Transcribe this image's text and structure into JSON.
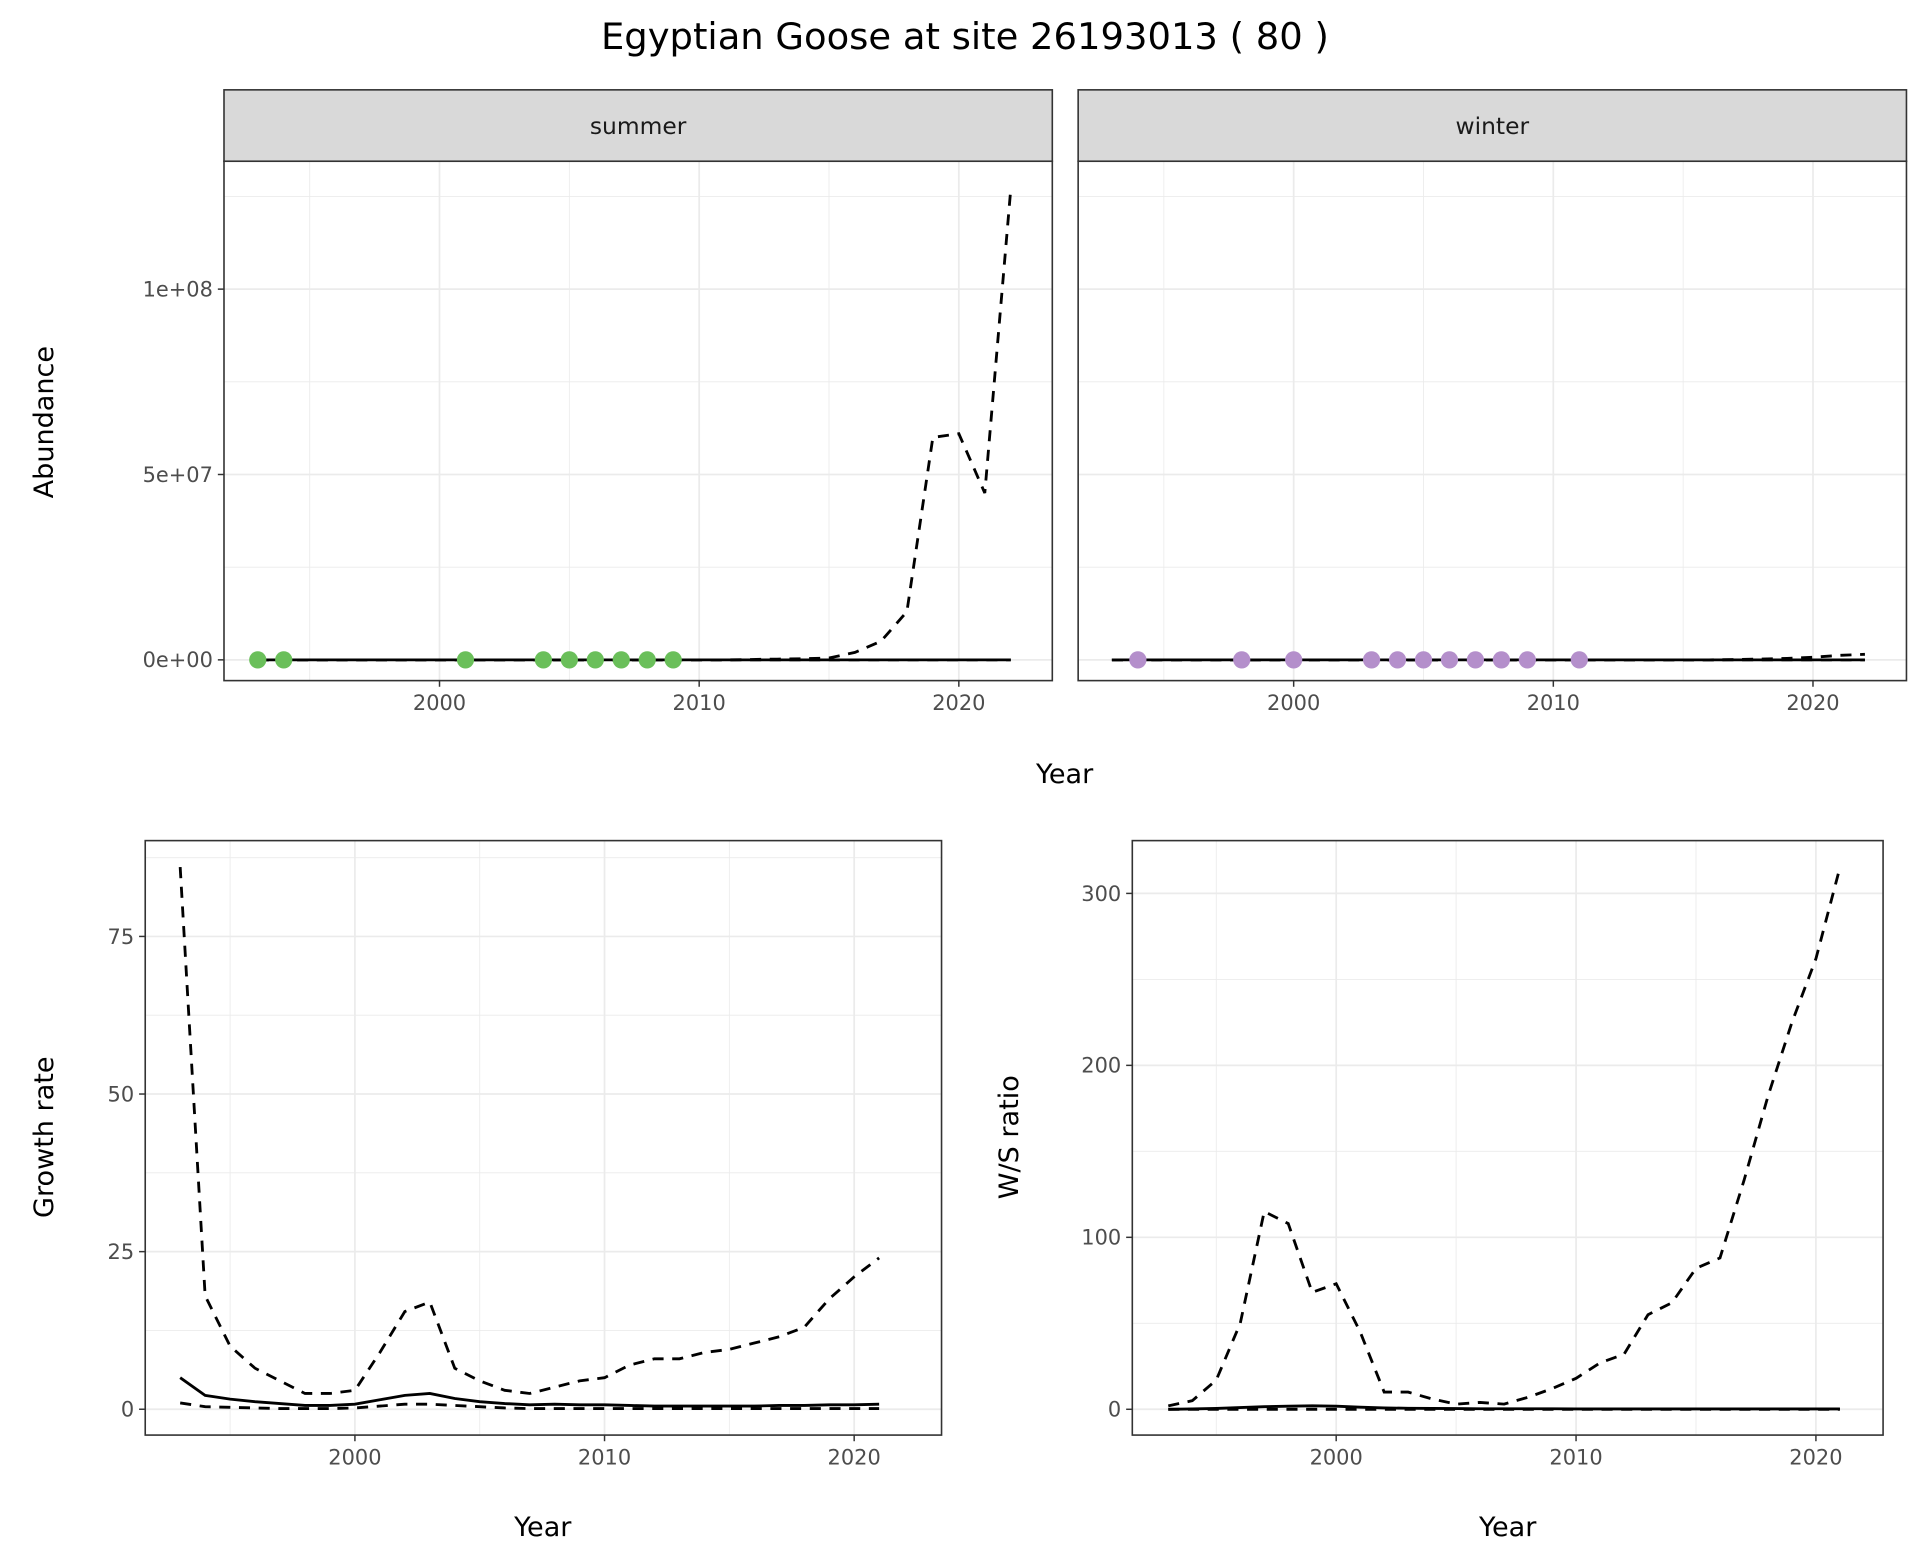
{
  "chart_data": {
    "title": "Egyptian Goose at site 26193013 ( 80 )",
    "colors": {
      "summer_points": "#6abf5a",
      "winter_points": "#b48fcb",
      "line": "#000000",
      "strip": "#d9d9d9",
      "grid": "#ebebeb"
    },
    "abundance": {
      "type": "line",
      "ylabel": "Abundance",
      "xlabel": "Year",
      "xlim": [
        1991.7,
        2023.6
      ],
      "ylim": [
        -5600000,
        134500000
      ],
      "xticks": [
        2000,
        2010,
        2020
      ],
      "xtick_labels": [
        "2000",
        "2010",
        "2020"
      ],
      "yticks": [
        0,
        50000000,
        100000000
      ],
      "ytick_labels": [
        "0e+00",
        "5e+07",
        "1e+08"
      ],
      "panels": [
        {
          "strip": "summer",
          "point_color_key": "summer_points",
          "points": {
            "x": [
              1993,
              1994,
              2001,
              2004,
              2005,
              2006,
              2007,
              2008,
              2009
            ],
            "y": [
              0,
              0,
              0,
              0,
              0,
              0,
              0,
              0,
              0
            ]
          },
          "x": [
            1993,
            1994,
            1995,
            1996,
            1997,
            1998,
            1999,
            2000,
            2001,
            2002,
            2003,
            2004,
            2005,
            2006,
            2007,
            2008,
            2009,
            2010,
            2011,
            2012,
            2013,
            2014,
            2015,
            2016,
            2017,
            2018,
            2019,
            2020,
            2021,
            2022
          ],
          "series": [
            {
              "name": "estimate",
              "style": "solid",
              "values": [
                0,
                0,
                0,
                0,
                0,
                0,
                0,
                0,
                0,
                0,
                0,
                0,
                0,
                0,
                0,
                0,
                0,
                0,
                0,
                0,
                0,
                0,
                0,
                0,
                0,
                0,
                0,
                0,
                0,
                0
              ]
            },
            {
              "name": "upper",
              "style": "dashed",
              "values": [
                0,
                0,
                0,
                0,
                0,
                0,
                0,
                0,
                0,
                0,
                0,
                0,
                0,
                0,
                0,
                0,
                0,
                0,
                0,
                100000,
                200000,
                300000,
                500000,
                2000000,
                5000000,
                13000000,
                60000000,
                61000000,
                45000000,
                127000000
              ]
            },
            {
              "name": "lower",
              "style": "dashed",
              "values": [
                0,
                0,
                0,
                0,
                0,
                0,
                0,
                0,
                0,
                0,
                0,
                0,
                0,
                0,
                0,
                0,
                0,
                0,
                0,
                0,
                0,
                0,
                0,
                0,
                0,
                0,
                0,
                0,
                0,
                0
              ]
            }
          ]
        },
        {
          "strip": "winter",
          "point_color_key": "winter_points",
          "points": {
            "x": [
              1994,
              1998,
              2000,
              2003,
              2004,
              2005,
              2006,
              2007,
              2008,
              2009,
              2011
            ],
            "y": [
              0,
              0,
              0,
              0,
              0,
              0,
              0,
              0,
              0,
              0,
              0
            ]
          },
          "x": [
            1993,
            1994,
            1995,
            1996,
            1997,
            1998,
            1999,
            2000,
            2001,
            2002,
            2003,
            2004,
            2005,
            2006,
            2007,
            2008,
            2009,
            2010,
            2011,
            2012,
            2013,
            2014,
            2015,
            2016,
            2017,
            2018,
            2019,
            2020,
            2021,
            2022
          ],
          "series": [
            {
              "name": "estimate",
              "style": "solid",
              "values": [
                0,
                0,
                0,
                0,
                0,
                0,
                0,
                0,
                0,
                0,
                0,
                0,
                0,
                0,
                0,
                0,
                0,
                0,
                0,
                0,
                0,
                0,
                0,
                0,
                0,
                0,
                0,
                0,
                0,
                0
              ]
            },
            {
              "name": "upper",
              "style": "dashed",
              "values": [
                0,
                0,
                0,
                0,
                0,
                0,
                0,
                0,
                0,
                0,
                0,
                0,
                0,
                0,
                0,
                0,
                0,
                0,
                0,
                0,
                0,
                0,
                0,
                0,
                100000,
                200000,
                400000,
                700000,
                1200000,
                1500000
              ]
            },
            {
              "name": "lower",
              "style": "dashed",
              "values": [
                0,
                0,
                0,
                0,
                0,
                0,
                0,
                0,
                0,
                0,
                0,
                0,
                0,
                0,
                0,
                0,
                0,
                0,
                0,
                0,
                0,
                0,
                0,
                0,
                0,
                0,
                0,
                0,
                0,
                0
              ]
            }
          ]
        }
      ]
    },
    "growth": {
      "type": "line",
      "ylabel": "Growth rate",
      "xlabel": "Year",
      "xlim": [
        1991.6,
        2023.5
      ],
      "ylim": [
        -4.1,
        90.2
      ],
      "xticks": [
        2000,
        2010,
        2020
      ],
      "xtick_labels": [
        "2000",
        "2010",
        "2020"
      ],
      "yticks": [
        0,
        25,
        50,
        75
      ],
      "ytick_labels": [
        "0",
        "25",
        "50",
        "75"
      ],
      "x": [
        1993,
        1994,
        1995,
        1996,
        1997,
        1998,
        1999,
        2000,
        2001,
        2002,
        2003,
        2004,
        2005,
        2006,
        2007,
        2008,
        2009,
        2010,
        2011,
        2012,
        2013,
        2014,
        2015,
        2016,
        2017,
        2018,
        2019,
        2020,
        2021
      ],
      "series": [
        {
          "name": "estimate",
          "style": "solid",
          "values": [
            5,
            2.2,
            1.6,
            1.2,
            0.9,
            0.6,
            0.6,
            0.8,
            1.5,
            2.2,
            2.5,
            1.7,
            1.2,
            0.9,
            0.7,
            0.8,
            0.7,
            0.7,
            0.6,
            0.5,
            0.5,
            0.5,
            0.5,
            0.5,
            0.6,
            0.6,
            0.7,
            0.7,
            0.8
          ]
        },
        {
          "name": "upper",
          "style": "dashed",
          "values": [
            86,
            18,
            10,
            6.5,
            4.5,
            2.5,
            2.5,
            3,
            9,
            15.5,
            17,
            6.5,
            4.5,
            3,
            2.5,
            3.5,
            4.5,
            5,
            7,
            8,
            8,
            9,
            9.5,
            10.5,
            11.5,
            13,
            17.5,
            21,
            24
          ]
        },
        {
          "name": "lower",
          "style": "dashed",
          "values": [
            1,
            0.4,
            0.3,
            0.2,
            0.1,
            0.1,
            0.1,
            0.2,
            0.5,
            0.8,
            0.8,
            0.6,
            0.4,
            0.2,
            0.1,
            0.1,
            0.1,
            0.1,
            0.1,
            0.1,
            0.1,
            0.1,
            0.1,
            0.1,
            0.1,
            0.1,
            0.1,
            0.1,
            0.1
          ]
        }
      ]
    },
    "ratio": {
      "type": "line",
      "ylabel": "W/S ratio",
      "xlabel": "Year",
      "xlim": [
        1991.5,
        2022.8
      ],
      "ylim": [
        -15,
        330.7
      ],
      "xticks": [
        2000,
        2010,
        2020
      ],
      "xtick_labels": [
        "2000",
        "2010",
        "2020"
      ],
      "yticks": [
        0,
        100,
        200,
        300
      ],
      "ytick_labels": [
        "0",
        "100",
        "200",
        "300"
      ],
      "x": [
        1993,
        1994,
        1995,
        1996,
        1997,
        1998,
        1999,
        2000,
        2001,
        2002,
        2003,
        2004,
        2005,
        2006,
        2007,
        2008,
        2009,
        2010,
        2011,
        2012,
        2013,
        2014,
        2015,
        2016,
        2017,
        2018,
        2019,
        2020,
        2021
      ],
      "series": [
        {
          "name": "estimate",
          "style": "solid",
          "values": [
            0,
            0.2,
            0.5,
            1,
            1.5,
            1.8,
            2,
            1.8,
            1.2,
            0.8,
            0.6,
            0.5,
            0.4,
            0.3,
            0.3,
            0.3,
            0.3,
            0.2,
            0.2,
            0.2,
            0.2,
            0.2,
            0.2,
            0.2,
            0.2,
            0.2,
            0.2,
            0.2,
            0.2
          ]
        },
        {
          "name": "upper",
          "style": "dashed",
          "values": [
            2,
            5,
            17,
            50,
            115,
            108,
            68,
            73,
            45,
            10,
            10,
            6,
            3,
            4,
            3,
            7,
            12,
            18,
            27,
            32,
            55,
            62,
            82,
            88,
            133,
            182,
            225,
            262,
            315
          ]
        },
        {
          "name": "lower",
          "style": "dashed",
          "values": [
            0,
            0,
            0,
            0,
            0,
            0,
            0,
            0,
            0,
            0,
            0,
            0,
            0,
            0,
            0,
            0,
            0,
            0,
            0,
            0,
            0,
            0,
            0,
            0,
            0,
            0,
            0,
            0,
            0
          ]
        }
      ]
    }
  }
}
